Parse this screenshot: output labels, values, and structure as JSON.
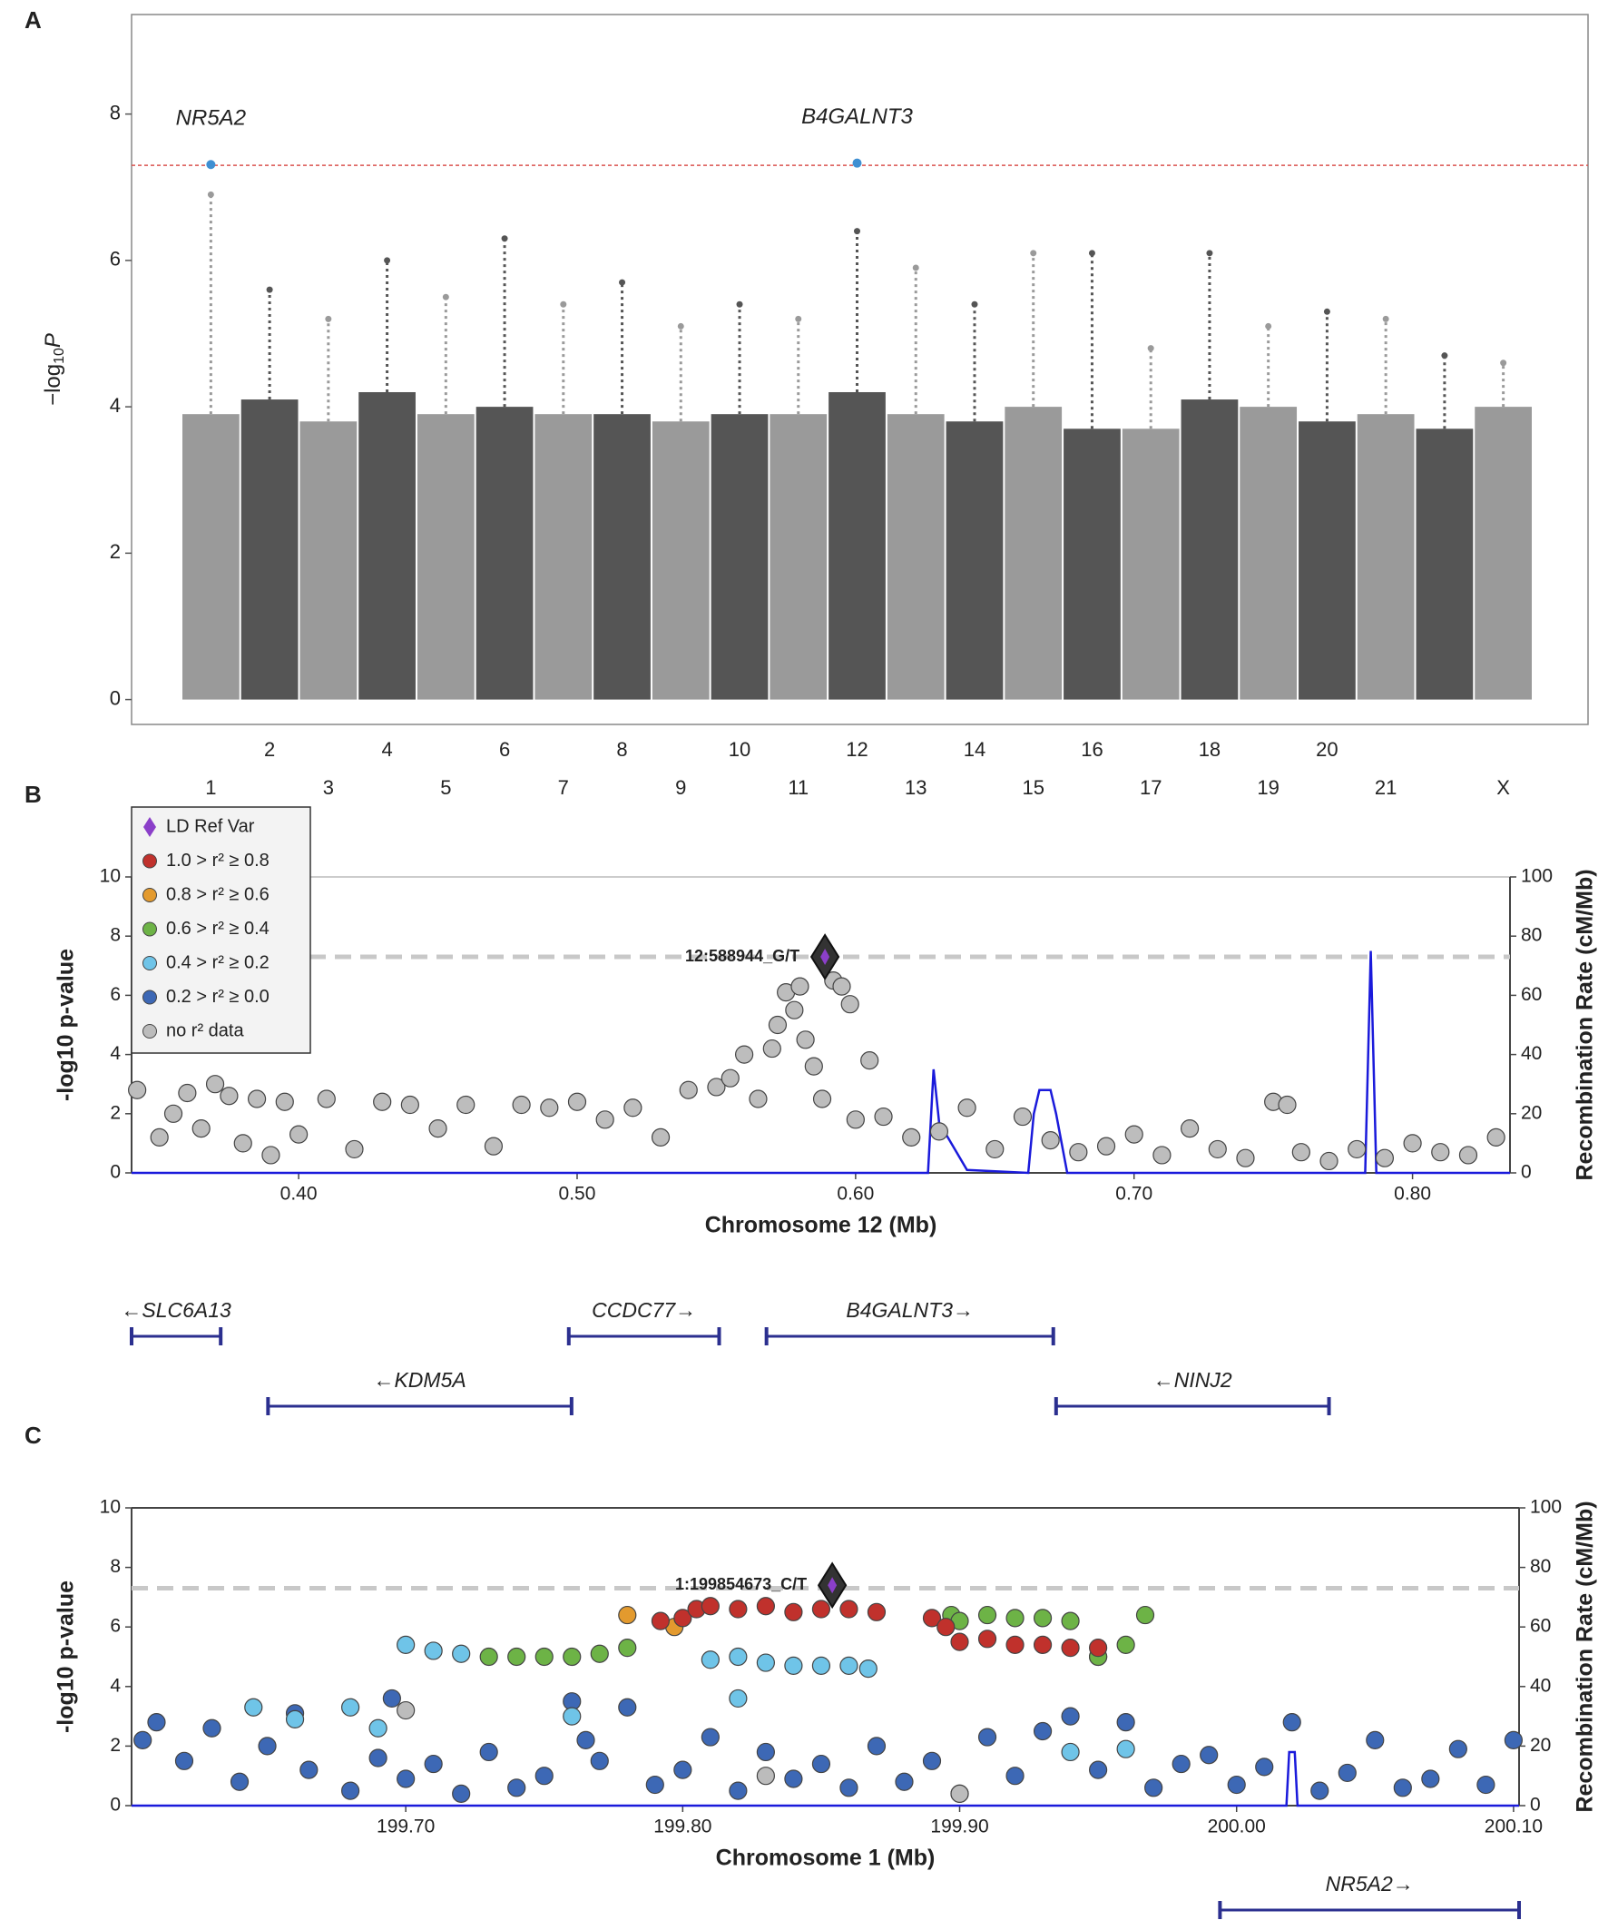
{
  "chart_data": [
    {
      "type": "manhattan",
      "panel": "A",
      "ylabel": "−log",
      "ylabel_sub": "10",
      "ylabel_tail": "P",
      "categories": [
        "1",
        "2",
        "3",
        "4",
        "5",
        "6",
        "7",
        "8",
        "9",
        "10",
        "11",
        "12",
        "13",
        "14",
        "15",
        "16",
        "17",
        "18",
        "19",
        "20",
        "21",
        null,
        "X"
      ],
      "values": [
        6.9,
        5.6,
        5.2,
        6.0,
        5.5,
        6.3,
        5.4,
        5.7,
        5.1,
        5.4,
        5.2,
        6.4,
        5.9,
        5.4,
        6.1,
        6.1,
        4.8,
        6.1,
        5.1,
        5.3,
        5.2,
        4.7,
        4.6
      ],
      "band_values": [
        3.9,
        4.1,
        3.8,
        4.2,
        3.9,
        4.0,
        3.9,
        3.9,
        3.8,
        3.9,
        3.9,
        4.2,
        3.9,
        3.8,
        4.0,
        3.7,
        3.7,
        4.1,
        4.0,
        3.8,
        3.9,
        3.7,
        4.0
      ],
      "colors": [
        "#9a9a9a",
        "#555555"
      ],
      "hits": [
        {
          "label": "NR5A2",
          "category": "1",
          "value": 7.31
        },
        {
          "label": "B4GALNT3",
          "category": "12",
          "value": 7.33
        }
      ],
      "hit_color": "#3f8fd2",
      "threshold": 7.3,
      "threshold_color": "#d9534f",
      "ylim": [
        -0.34,
        9.36
      ],
      "yticks": [
        0,
        2,
        4,
        6,
        8
      ]
    },
    {
      "type": "regional",
      "panel": "B",
      "xlabel": "Chromosome 12 (Mb)",
      "ylabel": "-log10 p-value",
      "y2label": "Recombination Rate (cM/Mb)",
      "xlim": [
        0.34,
        0.835
      ],
      "xticks": [
        {
          "value": 0.4,
          "label": "0.40"
        },
        {
          "value": 0.5,
          "label": "0.50"
        },
        {
          "value": 0.6,
          "label": "0.60"
        },
        {
          "value": 0.7,
          "label": "0.70"
        },
        {
          "value": 0.8,
          "label": "0.80"
        }
      ],
      "ylim": [
        0,
        10
      ],
      "yticks": [
        0,
        2,
        4,
        6,
        8,
        10
      ],
      "y2lim": [
        0,
        100
      ],
      "y2ticks": [
        0,
        20,
        40,
        60,
        80,
        100
      ],
      "threshold": 7.3,
      "lead": {
        "label": "12:588944_G/T",
        "x": 0.589,
        "value": 7.3
      },
      "series": [
        {
          "color": "#bdbdbd",
          "x": [
            0.342,
            0.35,
            0.355,
            0.36,
            0.365,
            0.37,
            0.375,
            0.38,
            0.385,
            0.39,
            0.395,
            0.4,
            0.41,
            0.42,
            0.43,
            0.44,
            0.45,
            0.46,
            0.47,
            0.48,
            0.49,
            0.5,
            0.51,
            0.52,
            0.53,
            0.54,
            0.55,
            0.555,
            0.56,
            0.565,
            0.57,
            0.572,
            0.575,
            0.578,
            0.58,
            0.582,
            0.585,
            0.588,
            0.592,
            0.595,
            0.598,
            0.6,
            0.605,
            0.61,
            0.62,
            0.63,
            0.64,
            0.65,
            0.66,
            0.67,
            0.68,
            0.69,
            0.7,
            0.71,
            0.72,
            0.73,
            0.74,
            0.75,
            0.755,
            0.76,
            0.77,
            0.78,
            0.79,
            0.8,
            0.81,
            0.82,
            0.83
          ],
          "values": [
            2.8,
            1.2,
            2.0,
            2.7,
            1.5,
            3.0,
            2.6,
            1.0,
            2.5,
            0.6,
            2.4,
            1.3,
            2.5,
            0.8,
            2.4,
            2.3,
            1.5,
            2.3,
            0.9,
            2.3,
            2.2,
            2.4,
            1.8,
            2.2,
            1.2,
            2.8,
            2.9,
            3.2,
            4.0,
            2.5,
            4.2,
            5.0,
            6.1,
            5.5,
            6.3,
            4.5,
            3.6,
            2.5,
            6.5,
            6.3,
            5.7,
            1.8,
            3.8,
            1.9,
            1.2,
            1.4,
            2.2,
            0.8,
            1.9,
            1.1,
            0.7,
            0.9,
            1.3,
            0.6,
            1.5,
            0.8,
            0.5,
            2.4,
            2.3,
            0.7,
            0.4,
            0.8,
            0.5,
            1.0,
            0.7,
            0.6,
            1.2
          ]
        },
        {
          "color": "#1a1adb",
          "axis": "y2",
          "x": [
            0.34,
            0.626,
            0.628,
            0.63,
            0.64,
            0.662,
            0.664,
            0.666,
            0.67,
            0.672,
            0.674,
            0.676,
            0.783,
            0.785,
            0.787,
            0.835
          ],
          "values": [
            0,
            0,
            35,
            17,
            1,
            0,
            20,
            28,
            28,
            20,
            10,
            0,
            0,
            75,
            0,
            0
          ]
        }
      ],
      "legend": [
        {
          "label": "LD Ref Var",
          "color": "#8b3fc9"
        },
        {
          "label": "1.0 > r² ≥ 0.8",
          "color": "#c0312c"
        },
        {
          "label": "0.8 > r² ≥ 0.6",
          "color": "#e39a2e"
        },
        {
          "label": "0.6 > r² ≥ 0.4",
          "color": "#6db346"
        },
        {
          "label": "0.4 > r² ≥ 0.2",
          "color": "#6fc4e8"
        },
        {
          "label": "0.2 > r² ≥ 0.0",
          "color": "#3d68b5"
        },
        {
          "label": "no r² data",
          "color": "#bcbcbc"
        }
      ],
      "genes": [
        {
          "label": "←SLC6A13",
          "start": 0.34,
          "end": 0.372,
          "row": 0
        },
        {
          "label": "CCDC77→",
          "start": 0.497,
          "end": 0.551,
          "row": 0
        },
        {
          "label": "B4GALNT3→",
          "start": 0.568,
          "end": 0.671,
          "row": 0
        },
        {
          "label": "←KDM5A",
          "start": 0.389,
          "end": 0.498,
          "row": 1
        },
        {
          "label": "←NINJ2",
          "start": 0.672,
          "end": 0.77,
          "row": 1
        }
      ]
    },
    {
      "type": "regional",
      "panel": "C",
      "xlabel": "Chromosome 1 (Mb)",
      "ylabel": "-log10 p-value",
      "y2label": "Recombination Rate (cM/Mb)",
      "xlim": [
        199.601,
        200.102
      ],
      "xticks": [
        {
          "value": 199.7,
          "label": "199.70"
        },
        {
          "value": 199.8,
          "label": "199.80"
        },
        {
          "value": 199.9,
          "label": "199.90"
        },
        {
          "value": 200,
          "label": "200.00"
        },
        {
          "value": 200.1,
          "label": "200.10"
        }
      ],
      "ylim": [
        0,
        10
      ],
      "yticks": [
        0,
        2,
        4,
        6,
        8,
        10
      ],
      "y2lim": [
        0,
        100
      ],
      "y2ticks": [
        0,
        20,
        40,
        60,
        80,
        100
      ],
      "threshold": 7.3,
      "lead": {
        "label": "1:199854673_C/T",
        "x": 199.854,
        "value": 7.4
      },
      "series": [
        {
          "color": "#1a1adb",
          "axis": "y2",
          "x": [
            199.601,
            200.018,
            200.019,
            200.021,
            200.022,
            200.102
          ],
          "values": [
            0,
            0,
            18,
            18,
            0,
            0
          ]
        },
        {
          "color": "#3d68b5",
          "x": [
            199.605,
            199.61,
            199.62,
            199.63,
            199.64,
            199.65,
            199.66,
            199.665,
            199.68,
            199.69,
            199.695,
            199.7,
            199.71,
            199.72,
            199.73,
            199.74,
            199.75,
            199.76,
            199.765,
            199.77,
            199.78,
            199.79,
            199.8,
            199.81,
            199.82,
            199.83,
            199.84,
            199.85,
            199.86,
            199.87,
            199.88,
            199.89,
            199.9,
            199.91,
            199.92,
            199.93,
            199.94,
            199.95,
            199.96,
            199.97,
            199.98,
            199.99,
            200.0,
            200.01,
            200.02,
            200.03,
            200.04,
            200.05,
            200.06,
            200.07,
            200.08,
            200.09,
            200.1
          ],
          "values": [
            2.2,
            2.8,
            1.5,
            2.6,
            0.8,
            2.0,
            3.1,
            1.2,
            0.5,
            1.6,
            3.6,
            0.9,
            1.4,
            0.4,
            1.8,
            0.6,
            1.0,
            3.5,
            2.2,
            1.5,
            3.3,
            0.7,
            1.2,
            2.3,
            0.5,
            1.8,
            0.9,
            1.4,
            0.6,
            2.0,
            0.8,
            1.5,
            0.4,
            2.3,
            1.0,
            2.5,
            3.0,
            1.2,
            2.8,
            0.6,
            1.4,
            1.7,
            0.7,
            1.3,
            2.8,
            0.5,
            1.1,
            2.2,
            0.6,
            0.9,
            1.9,
            0.7,
            2.2
          ]
        },
        {
          "color": "#bcbcbc",
          "x": [
            199.7,
            199.83,
            199.9,
            199.95
          ],
          "values": [
            3.2,
            1.0,
            0.4,
            5.0
          ]
        },
        {
          "color": "#6fc4e8",
          "x": [
            199.7,
            199.71,
            199.72,
            199.81,
            199.82,
            199.83,
            199.84,
            199.85,
            199.86,
            199.867,
            199.66,
            199.68,
            199.76,
            199.82,
            199.94,
            199.96,
            199.645,
            199.69
          ],
          "values": [
            5.4,
            5.2,
            5.1,
            4.9,
            5.0,
            4.8,
            4.7,
            4.7,
            4.7,
            4.6,
            2.9,
            3.3,
            3.0,
            3.6,
            1.8,
            1.9,
            3.3,
            2.6
          ]
        },
        {
          "color": "#6db346",
          "x": [
            199.73,
            199.74,
            199.75,
            199.76,
            199.77,
            199.78,
            199.897,
            199.9,
            199.91,
            199.92,
            199.93,
            199.94,
            199.95,
            199.96,
            199.967
          ],
          "values": [
            5.0,
            5.0,
            5.0,
            5.0,
            5.1,
            5.3,
            6.4,
            6.2,
            6.4,
            6.3,
            6.3,
            6.2,
            5.0,
            5.4,
            6.4
          ]
        },
        {
          "color": "#e39a2e",
          "x": [
            199.78,
            199.797
          ],
          "values": [
            6.4,
            6.0
          ]
        },
        {
          "color": "#c0312c",
          "x": [
            199.792,
            199.8,
            199.805,
            199.81,
            199.82,
            199.83,
            199.84,
            199.85,
            199.86,
            199.87,
            199.89,
            199.895,
            199.9,
            199.91,
            199.92,
            199.93,
            199.94,
            199.95
          ],
          "values": [
            6.2,
            6.3,
            6.6,
            6.7,
            6.6,
            6.7,
            6.5,
            6.6,
            6.6,
            6.5,
            6.3,
            6.0,
            5.5,
            5.6,
            5.4,
            5.4,
            5.3,
            5.3
          ]
        }
      ],
      "genes": [
        {
          "label": "NR5A2→",
          "start": 199.994,
          "end": 200.102,
          "row": 0
        }
      ]
    }
  ]
}
